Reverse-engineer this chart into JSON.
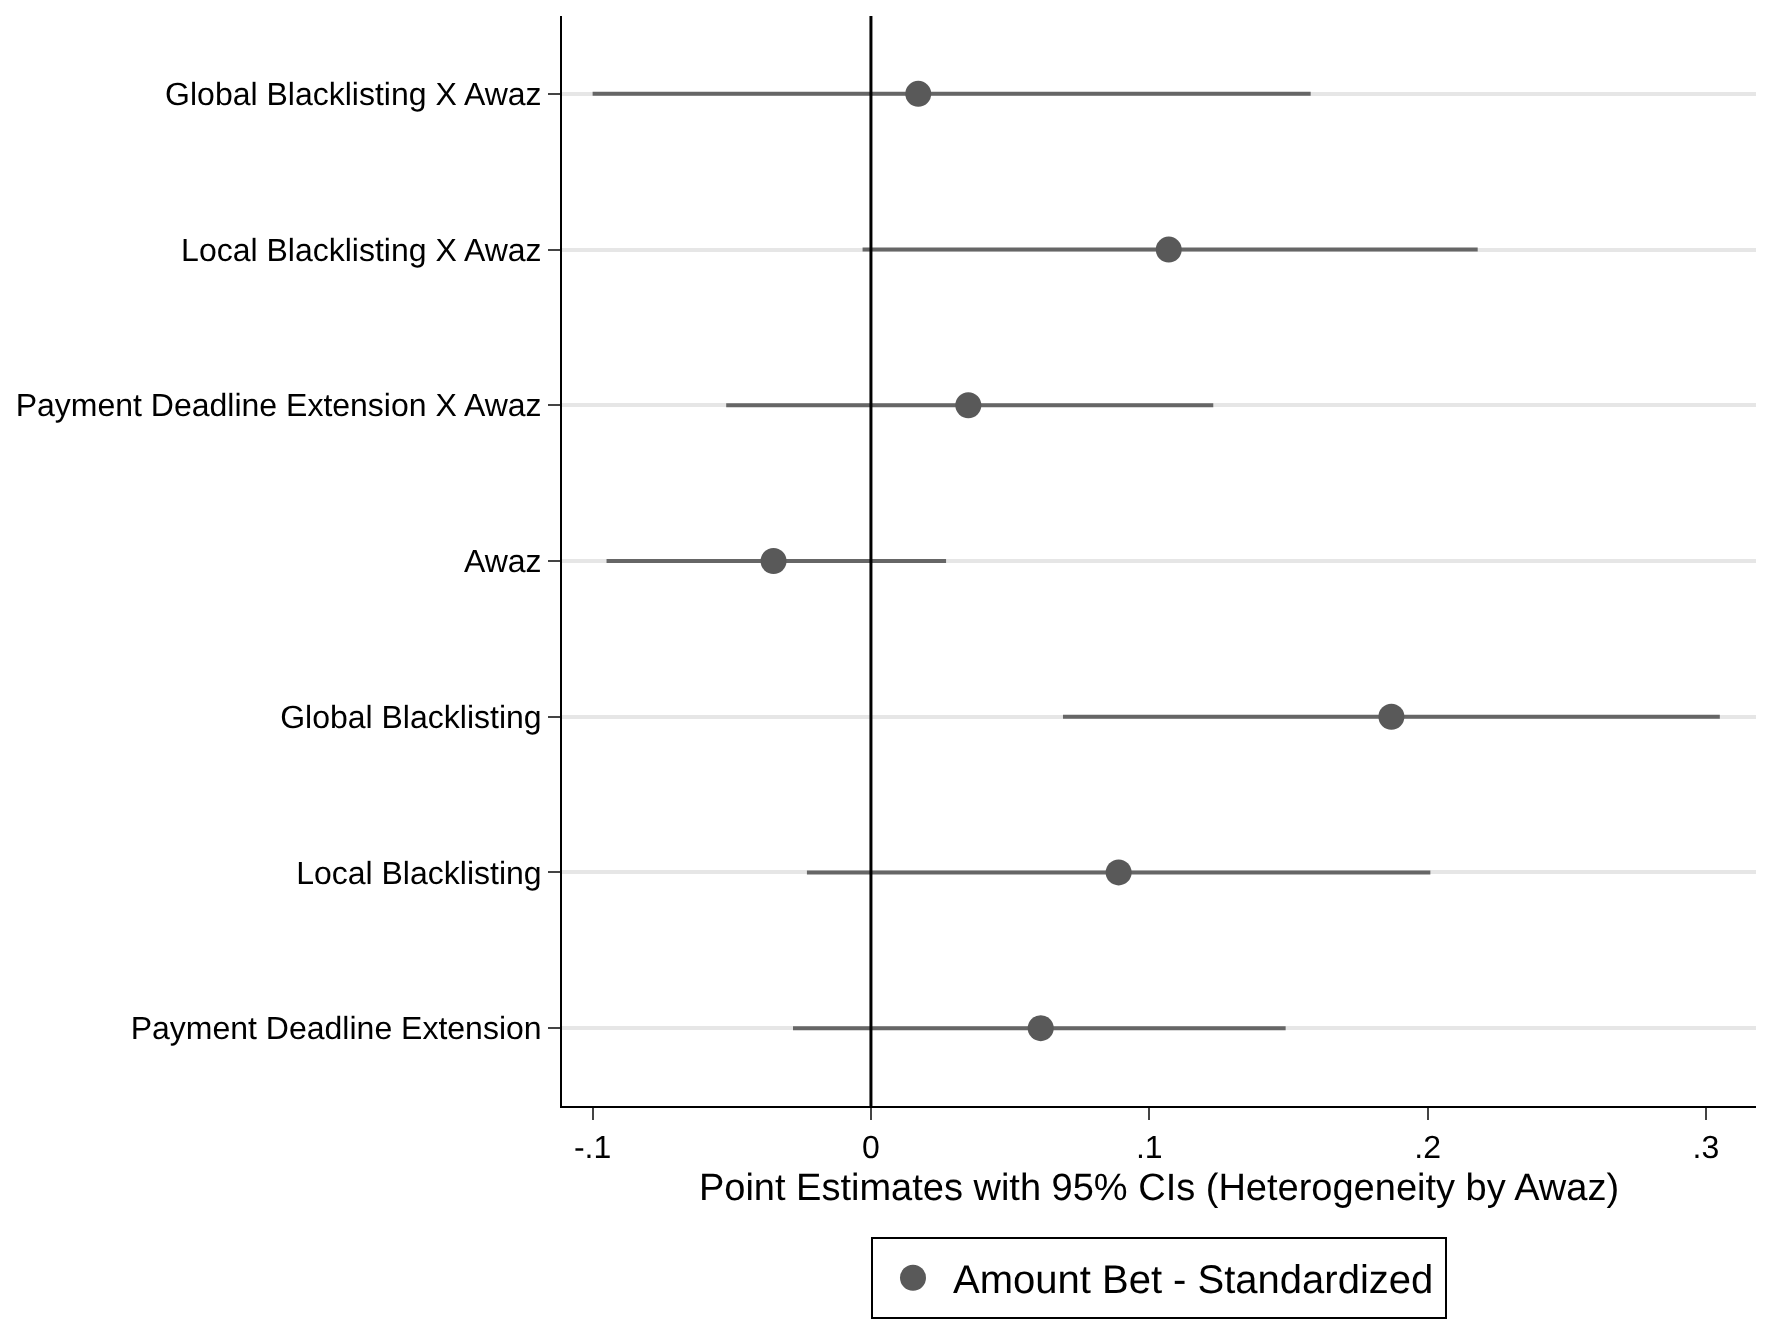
{
  "chart_data": {
    "type": "scatter",
    "orientation": "horizontal",
    "xlabel": "Point Estimates with 95% CIs (Heterogeneity by Awaz)",
    "categories": [
      "Global Blacklisting X Awaz",
      "Local Blacklisting X Awaz",
      "Payment Deadline Extension X Awaz",
      "Awaz",
      "Global Blacklisting",
      "Local Blacklisting",
      "Payment Deadline Extension"
    ],
    "series": [
      {
        "name": "Amount Bet - Standardized",
        "color": "#595959",
        "values": [
          0.017,
          0.107,
          0.035,
          -0.035,
          0.187,
          0.089,
          0.061
        ],
        "errors": [
          [
            -0.1,
            0.158
          ],
          [
            -0.003,
            0.218
          ],
          [
            -0.052,
            0.123
          ],
          [
            -0.095,
            0.027
          ],
          [
            0.069,
            0.305
          ],
          [
            -0.023,
            0.201
          ],
          [
            -0.028,
            0.149
          ]
        ]
      }
    ],
    "xlim": [
      -0.111,
      0.318
    ],
    "xticks": [
      {
        "value": -0.1,
        "label": "-.1"
      },
      {
        "value": 0,
        "label": "0"
      },
      {
        "value": 0.1,
        "label": ".1"
      },
      {
        "value": 0.2,
        "label": ".2"
      },
      {
        "value": 0.3,
        "label": ".3"
      }
    ],
    "ref_lines": [
      {
        "axis": "x",
        "value": 0,
        "color": "#000000"
      }
    ],
    "grid": "y",
    "legend": "bottom",
    "marker": "circle"
  }
}
